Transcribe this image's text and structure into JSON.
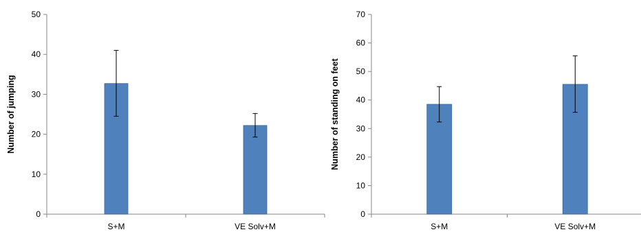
{
  "colors": {
    "bar": "#4f81bd",
    "bar_border": "#3c6896",
    "axis": "#868686"
  },
  "chart_data": [
    {
      "type": "bar",
      "title": "",
      "xlabel": "",
      "ylabel": "Number of jumping",
      "categories": [
        "S+M",
        "VE Solv+M"
      ],
      "values": [
        32.7,
        22.2
      ],
      "error_low": [
        24.5,
        19.3
      ],
      "error_high": [
        41.0,
        25.2
      ],
      "ylim": [
        0,
        50
      ],
      "yticks": [
        0,
        10,
        20,
        30,
        40,
        50
      ],
      "grid": false,
      "legend": "none"
    },
    {
      "type": "bar",
      "title": "",
      "xlabel": "",
      "ylabel": "Number of standing on feet",
      "categories": [
        "S+M",
        "VE Solv+M"
      ],
      "values": [
        38.5,
        45.5
      ],
      "error_low": [
        32.3,
        35.7
      ],
      "error_high": [
        44.7,
        55.5
      ],
      "ylim": [
        0,
        70
      ],
      "yticks": [
        0,
        10,
        20,
        30,
        40,
        50,
        60,
        70
      ],
      "grid": false,
      "legend": "none"
    }
  ]
}
